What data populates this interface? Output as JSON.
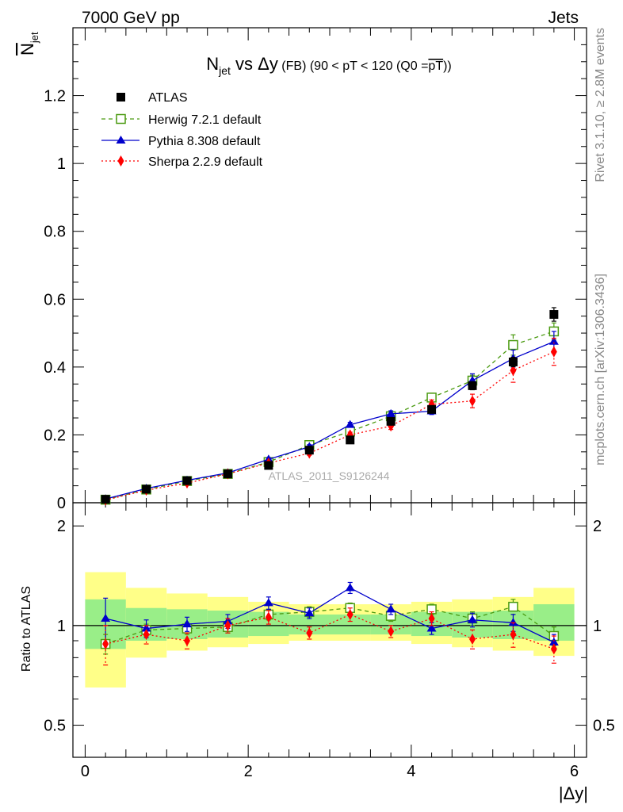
{
  "header": {
    "left": "7000 GeV pp",
    "right": "Jets"
  },
  "side_texts": {
    "rivet": "Rivet 3.1.10, ≥ 2.8M events",
    "mcplots": "mcplots.cern.ch [arXiv:1306.3436]"
  },
  "chart_data": {
    "type": "line",
    "title": {
      "main_n": "N",
      "main_sub": "jet",
      "main_rest": " vs Δy",
      "qualifier": " (FB) (90 < pT < 120 (Q0 =",
      "qualifier_bar": "pT",
      "qualifier_end": "))"
    },
    "watermark": "ATLAS_2011_S9126244",
    "ylabel": {
      "over": "N",
      "over_sub": "jet"
    },
    "xlabel": "|Δy|",
    "ratio_ylabel": "Ratio to ATLAS",
    "xlim": [
      -0.15,
      6.15
    ],
    "ylim": [
      0,
      1.4
    ],
    "ratio_ylim": [
      0.4,
      2.35
    ],
    "ratio_log": true,
    "xticks": [
      {
        "v": 0,
        "label": "0"
      },
      {
        "v": 2,
        "label": "2"
      },
      {
        "v": 4,
        "label": "4"
      },
      {
        "v": 6,
        "label": "6"
      }
    ],
    "yticks": [
      {
        "v": 0,
        "label": "0"
      },
      {
        "v": 0.2,
        "label": "0.2"
      },
      {
        "v": 0.4,
        "label": "0.4"
      },
      {
        "v": 0.6,
        "label": "0.6"
      },
      {
        "v": 0.8,
        "label": "0.8"
      },
      {
        "v": 1.0,
        "label": "1"
      },
      {
        "v": 1.2,
        "label": "1.2"
      }
    ],
    "ratio_yticks": [
      {
        "v": 0.5,
        "label": "0.5"
      },
      {
        "v": 1,
        "label": "1"
      },
      {
        "v": 2,
        "label": "2"
      }
    ],
    "bin_edges": [
      0,
      0.5,
      1.0,
      1.5,
      2.0,
      2.5,
      3.0,
      3.5,
      4.0,
      4.5,
      5.0,
      5.5,
      6.0
    ],
    "x": [
      0.25,
      0.75,
      1.25,
      1.75,
      2.25,
      2.75,
      3.25,
      3.75,
      4.25,
      4.75,
      5.25,
      5.75
    ],
    "band_inner": [
      [
        0.85,
        1.2
      ],
      [
        0.9,
        1.13
      ],
      [
        0.91,
        1.12
      ],
      [
        0.92,
        1.11
      ],
      [
        0.93,
        1.1
      ],
      [
        0.94,
        1.08
      ],
      [
        0.94,
        1.08
      ],
      [
        0.94,
        1.08
      ],
      [
        0.93,
        1.1
      ],
      [
        0.92,
        1.1
      ],
      [
        0.91,
        1.11
      ],
      [
        0.9,
        1.16
      ]
    ],
    "band_outer": [
      [
        0.65,
        1.45
      ],
      [
        0.8,
        1.3
      ],
      [
        0.84,
        1.25
      ],
      [
        0.86,
        1.22
      ],
      [
        0.88,
        1.18
      ],
      [
        0.9,
        1.16
      ],
      [
        0.9,
        1.16
      ],
      [
        0.9,
        1.16
      ],
      [
        0.88,
        1.18
      ],
      [
        0.86,
        1.2
      ],
      [
        0.84,
        1.22
      ],
      [
        0.81,
        1.3
      ]
    ],
    "legend_position": "top-left",
    "series": [
      {
        "name": "ATLAS",
        "role": "data",
        "color": "#000000",
        "marker": "square",
        "values": [
          0.01,
          0.04,
          0.065,
          0.085,
          0.11,
          0.155,
          0.185,
          0.24,
          0.275,
          0.345,
          0.415,
          0.555
        ],
        "errors": [
          0.003,
          0.004,
          0.004,
          0.005,
          0.005,
          0.006,
          0.006,
          0.008,
          0.01,
          0.012,
          0.014,
          0.02
        ]
      },
      {
        "name": "Herwig 7.2.1 default",
        "color": "#4a9a10",
        "marker": "open-square",
        "dash": "5,4",
        "values": [
          0.009,
          0.039,
          0.064,
          0.085,
          0.12,
          0.17,
          0.21,
          0.255,
          0.31,
          0.36,
          0.465,
          0.505
        ],
        "errors": [
          0.001,
          0.002,
          0.003,
          0.004,
          0.005,
          0.006,
          0.008,
          0.01,
          0.013,
          0.016,
          0.03,
          0.025
        ],
        "ratio": [
          0.88,
          0.97,
          0.98,
          0.99,
          1.08,
          1.1,
          1.13,
          1.07,
          1.12,
          1.05,
          1.14,
          0.93
        ],
        "ratio_errors": [
          0.06,
          0.04,
          0.04,
          0.04,
          0.04,
          0.04,
          0.04,
          0.04,
          0.04,
          0.05,
          0.06,
          0.06
        ]
      },
      {
        "name": "Pythia 8.308 default",
        "color": "#0000cc",
        "marker": "triangle",
        "dash": "",
        "values": [
          0.011,
          0.042,
          0.066,
          0.088,
          0.128,
          0.165,
          0.23,
          0.262,
          0.27,
          0.36,
          0.425,
          0.475
        ],
        "errors": [
          0.002,
          0.003,
          0.003,
          0.004,
          0.005,
          0.006,
          0.007,
          0.009,
          0.01,
          0.02,
          0.025,
          0.03
        ],
        "ratio": [
          1.05,
          0.98,
          1.01,
          1.03,
          1.17,
          1.09,
          1.3,
          1.12,
          0.98,
          1.04,
          1.02,
          0.89
        ],
        "ratio_errors": [
          0.16,
          0.06,
          0.05,
          0.05,
          0.05,
          0.04,
          0.05,
          0.04,
          0.04,
          0.05,
          0.06,
          0.05
        ]
      },
      {
        "name": "Sherpa 2.2.9 default",
        "color": "#ff0000",
        "marker": "diamond",
        "dash": "2,3",
        "values": [
          0.008,
          0.037,
          0.058,
          0.085,
          0.117,
          0.146,
          0.2,
          0.226,
          0.29,
          0.3,
          0.39,
          0.445
        ],
        "errors": [
          0.001,
          0.002,
          0.003,
          0.004,
          0.005,
          0.006,
          0.008,
          0.01,
          0.013,
          0.02,
          0.035,
          0.04
        ],
        "ratio": [
          0.88,
          0.94,
          0.9,
          1.0,
          1.06,
          0.95,
          1.08,
          0.96,
          1.05,
          0.91,
          0.94,
          0.85
        ],
        "ratio_errors": [
          0.12,
          0.06,
          0.05,
          0.05,
          0.05,
          0.04,
          0.05,
          0.04,
          0.05,
          0.06,
          0.08,
          0.08
        ]
      }
    ]
  }
}
